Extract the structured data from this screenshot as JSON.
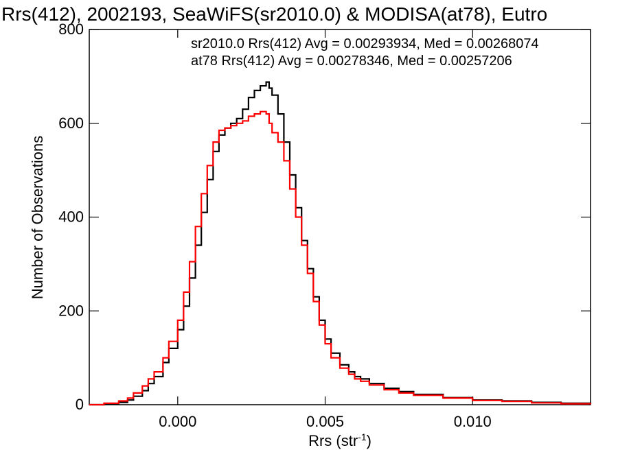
{
  "chart_data": {
    "type": "line",
    "title": "Rrs(412), 2002193, SeaWiFS(sr2010.0) & MODISA(at78), Eutro",
    "xlabel": "Rrs (str",
    "xlabel_sup": "-1",
    "xlabel_close": ")",
    "ylabel": "Number of Observations",
    "xlim": [
      -0.003,
      0.014
    ],
    "ylim": [
      0,
      800
    ],
    "xticks": [
      0.0,
      0.005,
      0.01
    ],
    "xtick_labels": [
      "0.000",
      "0.005",
      "0.010"
    ],
    "yticks": [
      0,
      200,
      400,
      600,
      800
    ],
    "ytick_labels": [
      "0",
      "200",
      "400",
      "600",
      "800"
    ],
    "step_style": "histogram",
    "legend_position": "top",
    "series": [
      {
        "name": "sr2010.0",
        "color": "#000000",
        "annotation": "sr2010.0 Rrs(412) Avg = 0.00293934, Med = 0.00268074",
        "x": [
          -0.003,
          -0.0025,
          -0.002,
          -0.0017,
          -0.0015,
          -0.0012,
          -0.001,
          -0.0008,
          -0.0005,
          -0.0003,
          0.0,
          0.0002,
          0.0004,
          0.0006,
          0.0008,
          0.001,
          0.0012,
          0.0014,
          0.0016,
          0.0018,
          0.002,
          0.0022,
          0.0024,
          0.0026,
          0.0028,
          0.003,
          0.0031,
          0.0032,
          0.0034,
          0.0036,
          0.0038,
          0.004,
          0.0042,
          0.0044,
          0.0046,
          0.0048,
          0.005,
          0.0052,
          0.0055,
          0.0058,
          0.006,
          0.0062,
          0.0065,
          0.007,
          0.0075,
          0.008,
          0.009,
          0.01,
          0.011,
          0.012,
          0.013,
          0.014
        ],
        "y": [
          0,
          2,
          5,
          10,
          18,
          30,
          45,
          60,
          90,
          120,
          160,
          210,
          270,
          340,
          410,
          480,
          540,
          575,
          590,
          600,
          610,
          630,
          655,
          670,
          680,
          688,
          675,
          660,
          620,
          560,
          490,
          420,
          350,
          290,
          230,
          180,
          140,
          110,
          85,
          70,
          60,
          55,
          45,
          35,
          28,
          22,
          15,
          10,
          8,
          5,
          3,
          2
        ]
      },
      {
        "name": "at78",
        "color": "#ff0000",
        "annotation": "at78 Rrs(412) Avg = 0.00278346, Med = 0.00257206",
        "x": [
          -0.003,
          -0.0025,
          -0.002,
          -0.0017,
          -0.0015,
          -0.0012,
          -0.001,
          -0.0008,
          -0.0005,
          -0.0003,
          0.0,
          0.0002,
          0.0004,
          0.0006,
          0.0008,
          0.001,
          0.0012,
          0.0014,
          0.0016,
          0.0018,
          0.002,
          0.0022,
          0.0024,
          0.0026,
          0.0028,
          0.003,
          0.0031,
          0.0032,
          0.0034,
          0.0036,
          0.0038,
          0.004,
          0.0042,
          0.0044,
          0.0046,
          0.0048,
          0.005,
          0.0052,
          0.0055,
          0.0058,
          0.006,
          0.0062,
          0.0065,
          0.007,
          0.0075,
          0.008,
          0.009,
          0.01,
          0.011,
          0.012,
          0.013,
          0.014
        ],
        "y": [
          0,
          3,
          8,
          14,
          25,
          40,
          55,
          70,
          100,
          135,
          180,
          240,
          305,
          380,
          450,
          510,
          560,
          585,
          590,
          595,
          600,
          605,
          615,
          620,
          625,
          620,
          600,
          580,
          560,
          520,
          460,
          400,
          340,
          280,
          220,
          170,
          130,
          100,
          78,
          65,
          55,
          50,
          42,
          32,
          25,
          20,
          14,
          9,
          7,
          4,
          2,
          1
        ]
      }
    ]
  }
}
